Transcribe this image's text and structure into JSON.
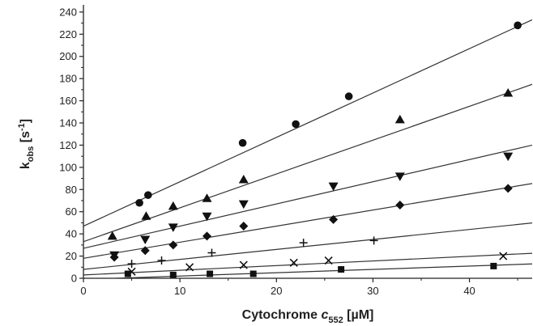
{
  "chart_data": {
    "type": "scatter",
    "title": "",
    "xlabel": {
      "pre": "Cytochrome ",
      "ital": "c",
      "sub": "552",
      "post": " [µM]"
    },
    "ylabel": {
      "main": "k",
      "sub": "obs",
      "post": " [s",
      "sup": "-1",
      "close": "]"
    },
    "xlim": [
      0,
      46.5
    ],
    "ylim": [
      0,
      245
    ],
    "x_ticks": [
      0,
      10,
      20,
      30,
      40
    ],
    "y_ticks": [
      0,
      20,
      40,
      60,
      80,
      100,
      120,
      140,
      160,
      180,
      200,
      220,
      240
    ],
    "grid": false,
    "series": [
      {
        "marker": "circle",
        "points": [
          [
            5.8,
            68
          ],
          [
            6.7,
            75
          ],
          [
            16.5,
            122
          ],
          [
            22,
            139
          ],
          [
            27.5,
            164
          ],
          [
            45,
            228
          ]
        ],
        "fit": {
          "intercept": 47,
          "slope": 4.0
        }
      },
      {
        "marker": "triangle-up",
        "points": [
          [
            3,
            38
          ],
          [
            6.5,
            56
          ],
          [
            9.3,
            65
          ],
          [
            12.8,
            72
          ],
          [
            16.6,
            89
          ],
          [
            32.8,
            143
          ],
          [
            44,
            167
          ]
        ],
        "fit": {
          "intercept": 33,
          "slope": 3.05
        }
      },
      {
        "marker": "triangle-down",
        "points": [
          [
            3.2,
            21
          ],
          [
            6.4,
            35
          ],
          [
            9.3,
            46
          ],
          [
            12.8,
            56
          ],
          [
            16.6,
            67
          ],
          [
            25.9,
            83
          ],
          [
            32.8,
            92
          ],
          [
            44,
            110
          ]
        ],
        "fit": {
          "intercept": 27,
          "slope": 2.0
        }
      },
      {
        "marker": "diamond",
        "points": [
          [
            3.2,
            19
          ],
          [
            6.4,
            25
          ],
          [
            9.3,
            30
          ],
          [
            12.8,
            38
          ],
          [
            16.6,
            47
          ],
          [
            25.9,
            53
          ],
          [
            32.8,
            66
          ],
          [
            44,
            81
          ]
        ],
        "fit": {
          "intercept": 18,
          "slope": 1.45
        }
      },
      {
        "marker": "plus",
        "points": [
          [
            5,
            13
          ],
          [
            8.1,
            16
          ],
          [
            13.3,
            23
          ],
          [
            22.8,
            32
          ],
          [
            30.1,
            34
          ]
        ],
        "fit": {
          "intercept": 8,
          "slope": 0.9
        }
      },
      {
        "marker": "x",
        "points": [
          [
            5,
            6
          ],
          [
            11,
            10
          ],
          [
            16.6,
            12
          ],
          [
            21.8,
            14
          ],
          [
            25.4,
            16
          ],
          [
            43.5,
            20
          ]
        ],
        "fit": {
          "intercept": 3,
          "slope": 0.42
        }
      },
      {
        "marker": "square",
        "points": [
          [
            4.6,
            4
          ],
          [
            9.3,
            3
          ],
          [
            13.1,
            4
          ],
          [
            17.6,
            4
          ],
          [
            26.7,
            8
          ],
          [
            42.5,
            11
          ]
        ],
        "fit": {
          "intercept": -1,
          "slope": 0.3
        }
      }
    ]
  }
}
